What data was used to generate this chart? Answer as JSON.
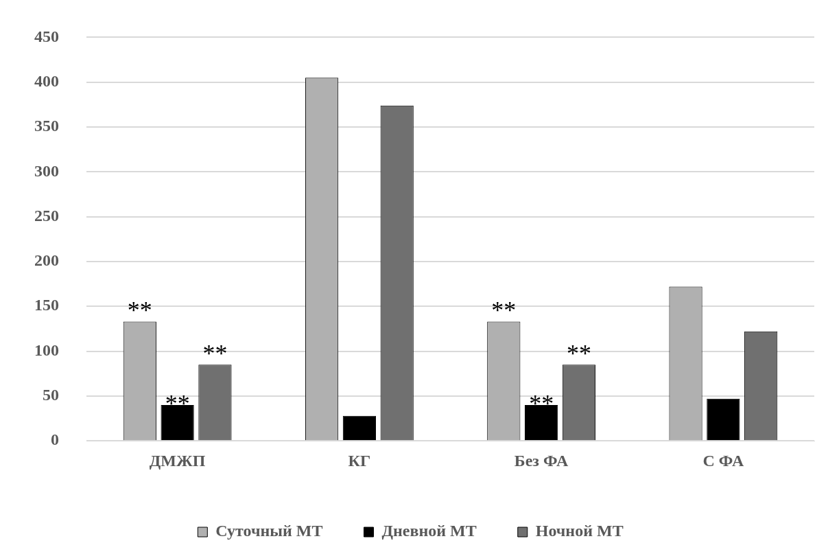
{
  "chart_data": {
    "type": "bar",
    "categories": [
      "ДМЖП",
      "КГ",
      "Без ФА",
      "С ФА"
    ],
    "series": [
      {
        "name": "Суточный МТ",
        "color": "#b0b0b0",
        "values": [
          133,
          405,
          133,
          172
        ]
      },
      {
        "name": "Дневной МТ",
        "color": "#000000",
        "values": [
          40,
          28,
          40,
          47
        ]
      },
      {
        "name": "Ночной МТ",
        "color": "#707070",
        "values": [
          85,
          374,
          85,
          122
        ]
      }
    ],
    "ylim": [
      0,
      450
    ],
    "yticks": [
      0,
      50,
      100,
      150,
      200,
      250,
      300,
      350,
      400,
      450
    ],
    "grid": "y",
    "legend": "bottom",
    "annotations": [
      "**",
      {
        "text": "**",
        "x": "ДМЖП",
        "y": 40
      },
      "**",
      "**",
      {
        "text": "**",
        "x": "Без ФА",
        "y": 40
      },
      "**"
    ]
  }
}
